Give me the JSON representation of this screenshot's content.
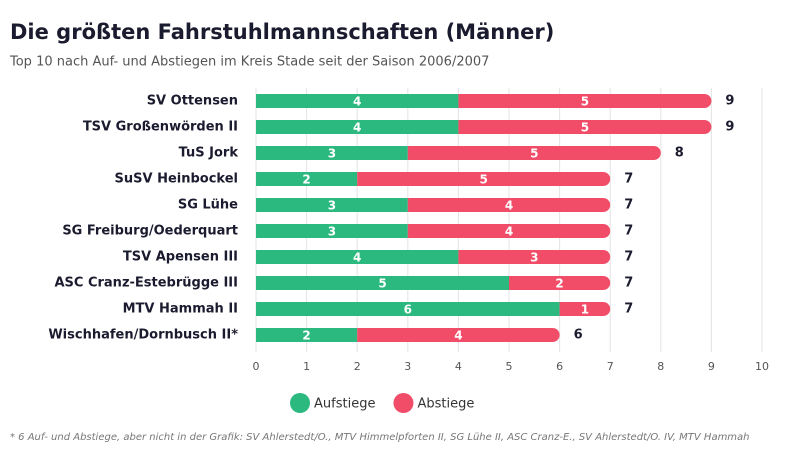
{
  "chart_data": {
    "type": "stacked-bar-horizontal",
    "title": "Die größten Fahrstuhlmannschaften (Männer)",
    "subtitle": "Top 10 nach Auf- und Abstiegen im Kreis Stade seit der Saison 2006/2007",
    "categories": [
      "SV Ottensen",
      "TSV Großenwörden II",
      "TuS Jork",
      "SuSV Heinbockel",
      "SG Lühe",
      "SG Freiburg/Oederquart",
      "TSV Apensen III",
      "ASC Cranz-Estebrügge III",
      "MTV Hammah II",
      "Wischhafen/Dornbusch II*"
    ],
    "series": [
      {
        "name": "Aufstiege",
        "color": "#2bb980",
        "values": [
          4,
          4,
          3,
          2,
          3,
          3,
          4,
          5,
          6,
          2
        ]
      },
      {
        "name": "Abstiege",
        "color": "#f24d68",
        "values": [
          5,
          5,
          5,
          5,
          4,
          4,
          3,
          2,
          1,
          4
        ]
      }
    ],
    "totals": [
      9,
      9,
      8,
      7,
      7,
      7,
      7,
      7,
      7,
      6
    ],
    "xlim": [
      0,
      10
    ],
    "xticks": [
      0,
      1,
      2,
      3,
      4,
      5,
      6,
      7,
      8,
      9,
      10
    ],
    "grid": true,
    "footnote": "* 6 Auf- und Abstiege, aber nicht in der Grafik: SV Ahlerstedt/O., MTV Himmelpforten II, SG Lühe II, ASC Cranz-E., SV Ahlerstedt/O. IV, MTV Hammah"
  }
}
